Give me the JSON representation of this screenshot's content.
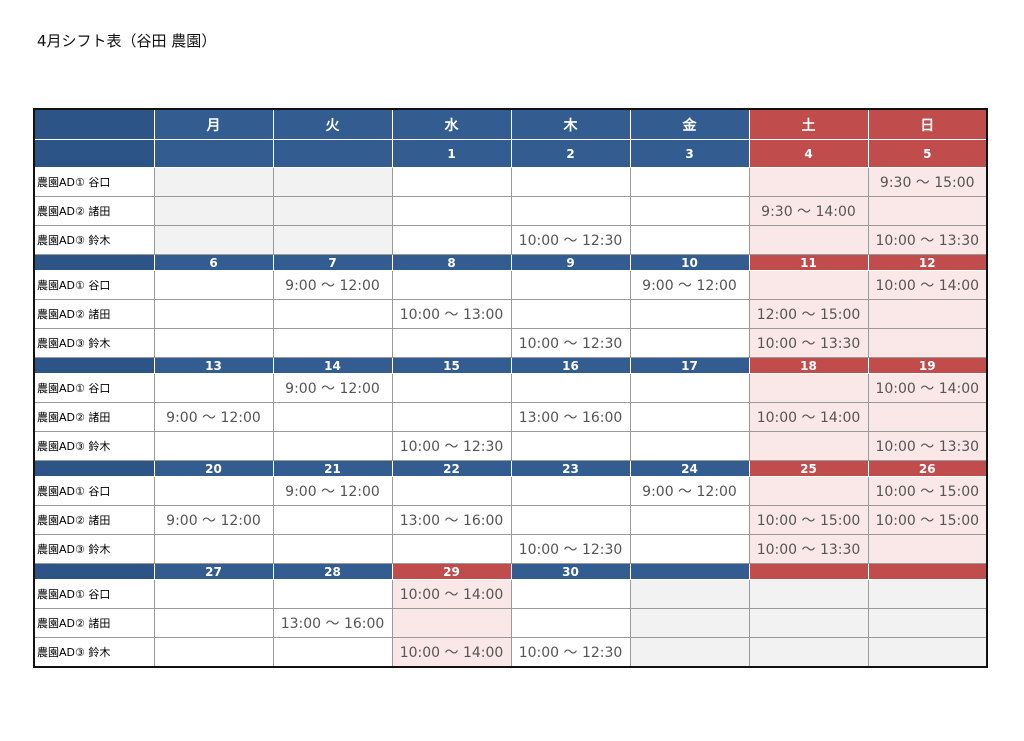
{
  "title": "4月シフト表（谷田 農園）",
  "weekdays": [
    "月",
    "火",
    "水",
    "木",
    "金",
    "土",
    "日"
  ],
  "staff": [
    "農園AD① 谷口",
    "農園AD② 諸田",
    "農園AD③ 鈴木"
  ],
  "weeks": [
    {
      "dates": [
        "",
        "",
        "1",
        "2",
        "3",
        "4",
        "5"
      ],
      "rows": [
        [
          "",
          "",
          "",
          "",
          "",
          "",
          "9:30 ～ 15:00"
        ],
        [
          "",
          "",
          "",
          "",
          "",
          "9:30 ～ 14:00",
          ""
        ],
        [
          "",
          "",
          "",
          "10:00 ～ 12:30",
          "",
          "",
          "10:00 ～ 13:30"
        ]
      ]
    },
    {
      "dates": [
        "6",
        "7",
        "8",
        "9",
        "10",
        "11",
        "12"
      ],
      "rows": [
        [
          "",
          "9:00 ～ 12:00",
          "",
          "",
          "9:00 ～ 12:00",
          "",
          "10:00 ～ 14:00"
        ],
        [
          "",
          "",
          "10:00 ～ 13:00",
          "",
          "",
          "12:00 ～ 15:00",
          ""
        ],
        [
          "",
          "",
          "",
          "10:00 ～ 12:30",
          "",
          "10:00 ～ 13:30",
          ""
        ]
      ]
    },
    {
      "dates": [
        "13",
        "14",
        "15",
        "16",
        "17",
        "18",
        "19"
      ],
      "rows": [
        [
          "",
          "9:00 ～ 12:00",
          "",
          "",
          "",
          "",
          "10:00 ～ 14:00"
        ],
        [
          "9:00 ～ 12:00",
          "",
          "",
          "13:00 ～ 16:00",
          "",
          "10:00 ～ 14:00",
          ""
        ],
        [
          "",
          "",
          "10:00 ～ 12:30",
          "",
          "",
          "",
          "10:00 ～ 13:30"
        ]
      ]
    },
    {
      "dates": [
        "20",
        "21",
        "22",
        "23",
        "24",
        "25",
        "26"
      ],
      "rows": [
        [
          "",
          "9:00 ～ 12:00",
          "",
          "",
          "9:00 ～ 12:00",
          "",
          "10:00 ～ 15:00"
        ],
        [
          "9:00 ～ 12:00",
          "",
          "13:00 ～ 16:00",
          "",
          "",
          "10:00 ～ 15:00",
          "10:00 ～ 15:00"
        ],
        [
          "",
          "",
          "",
          "10:00 ～ 12:30",
          "",
          "10:00 ～ 13:30",
          ""
        ]
      ]
    },
    {
      "dates": [
        "27",
        "28",
        "29",
        "30",
        "",
        "",
        ""
      ],
      "rows": [
        [
          "",
          "",
          "10:00 ～ 14:00",
          "",
          "",
          "",
          ""
        ],
        [
          "",
          "13:00 ～ 16:00",
          "",
          "",
          "",
          "",
          ""
        ],
        [
          "",
          "",
          "10:00 ～ 14:00",
          "10:00 ～ 12:30",
          "",
          "",
          ""
        ]
      ]
    }
  ],
  "colors": {
    "header_blue": "#335c91",
    "weekend_red": "#c04c4b",
    "weekend_tint": "#fae8e8",
    "inactive_gray": "#f2f2f2"
  }
}
